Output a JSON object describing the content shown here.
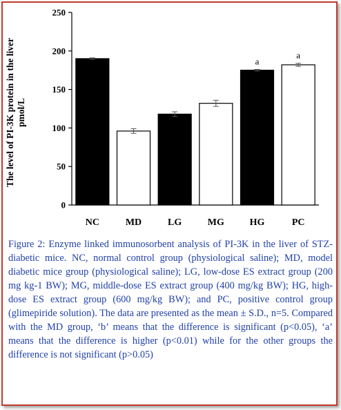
{
  "chart_data": {
    "type": "bar",
    "categories": [
      "NC",
      "MD",
      "LG",
      "MG",
      "HG",
      "PC"
    ],
    "values": [
      190,
      96,
      118,
      132,
      175,
      182
    ],
    "errors": [
      1,
      3,
      3,
      4,
      1,
      2
    ],
    "fills": [
      "#000000",
      "#ffffff",
      "#000000",
      "#ffffff",
      "#000000",
      "#ffffff"
    ],
    "annotations": [
      "",
      "",
      "",
      "",
      "a",
      "a"
    ],
    "ylabel_line1": "The level of PI-3K protein in the liver",
    "ylabel_line2": "pmol/L",
    "yticks": [
      "0",
      "50",
      "100",
      "150",
      "200",
      "250"
    ],
    "ylim": [
      0,
      250
    ],
    "grid": false
  },
  "caption": "Figure 2: Enzyme linked immunosorbent analysis of PI-3K in the liver of STZ-diabetic mice. NC, normal control group (physiological saline); MD, model diabetic mice group (physiological saline); LG, low-dose ES extract group (200 mg kg-1 BW); MG, middle-dose ES extract group (400 mg/kg BW); HG, high-dose ES extract group (600 mg/kg BW); and PC, positive control group (glimepiride solution). The data are presented as the mean ± S.D., n=5. Compared with the MD group, ‘b’ means that the difference is significant (p<0.05), ‘a’ means that the difference is higher (p<0.01) while for the other groups the difference is not significant (p>0.05)",
  "colors": {
    "border": "#c0392b",
    "caption_text": "#2040a8",
    "bar_dark": "#000000",
    "bar_light": "#ffffff"
  }
}
